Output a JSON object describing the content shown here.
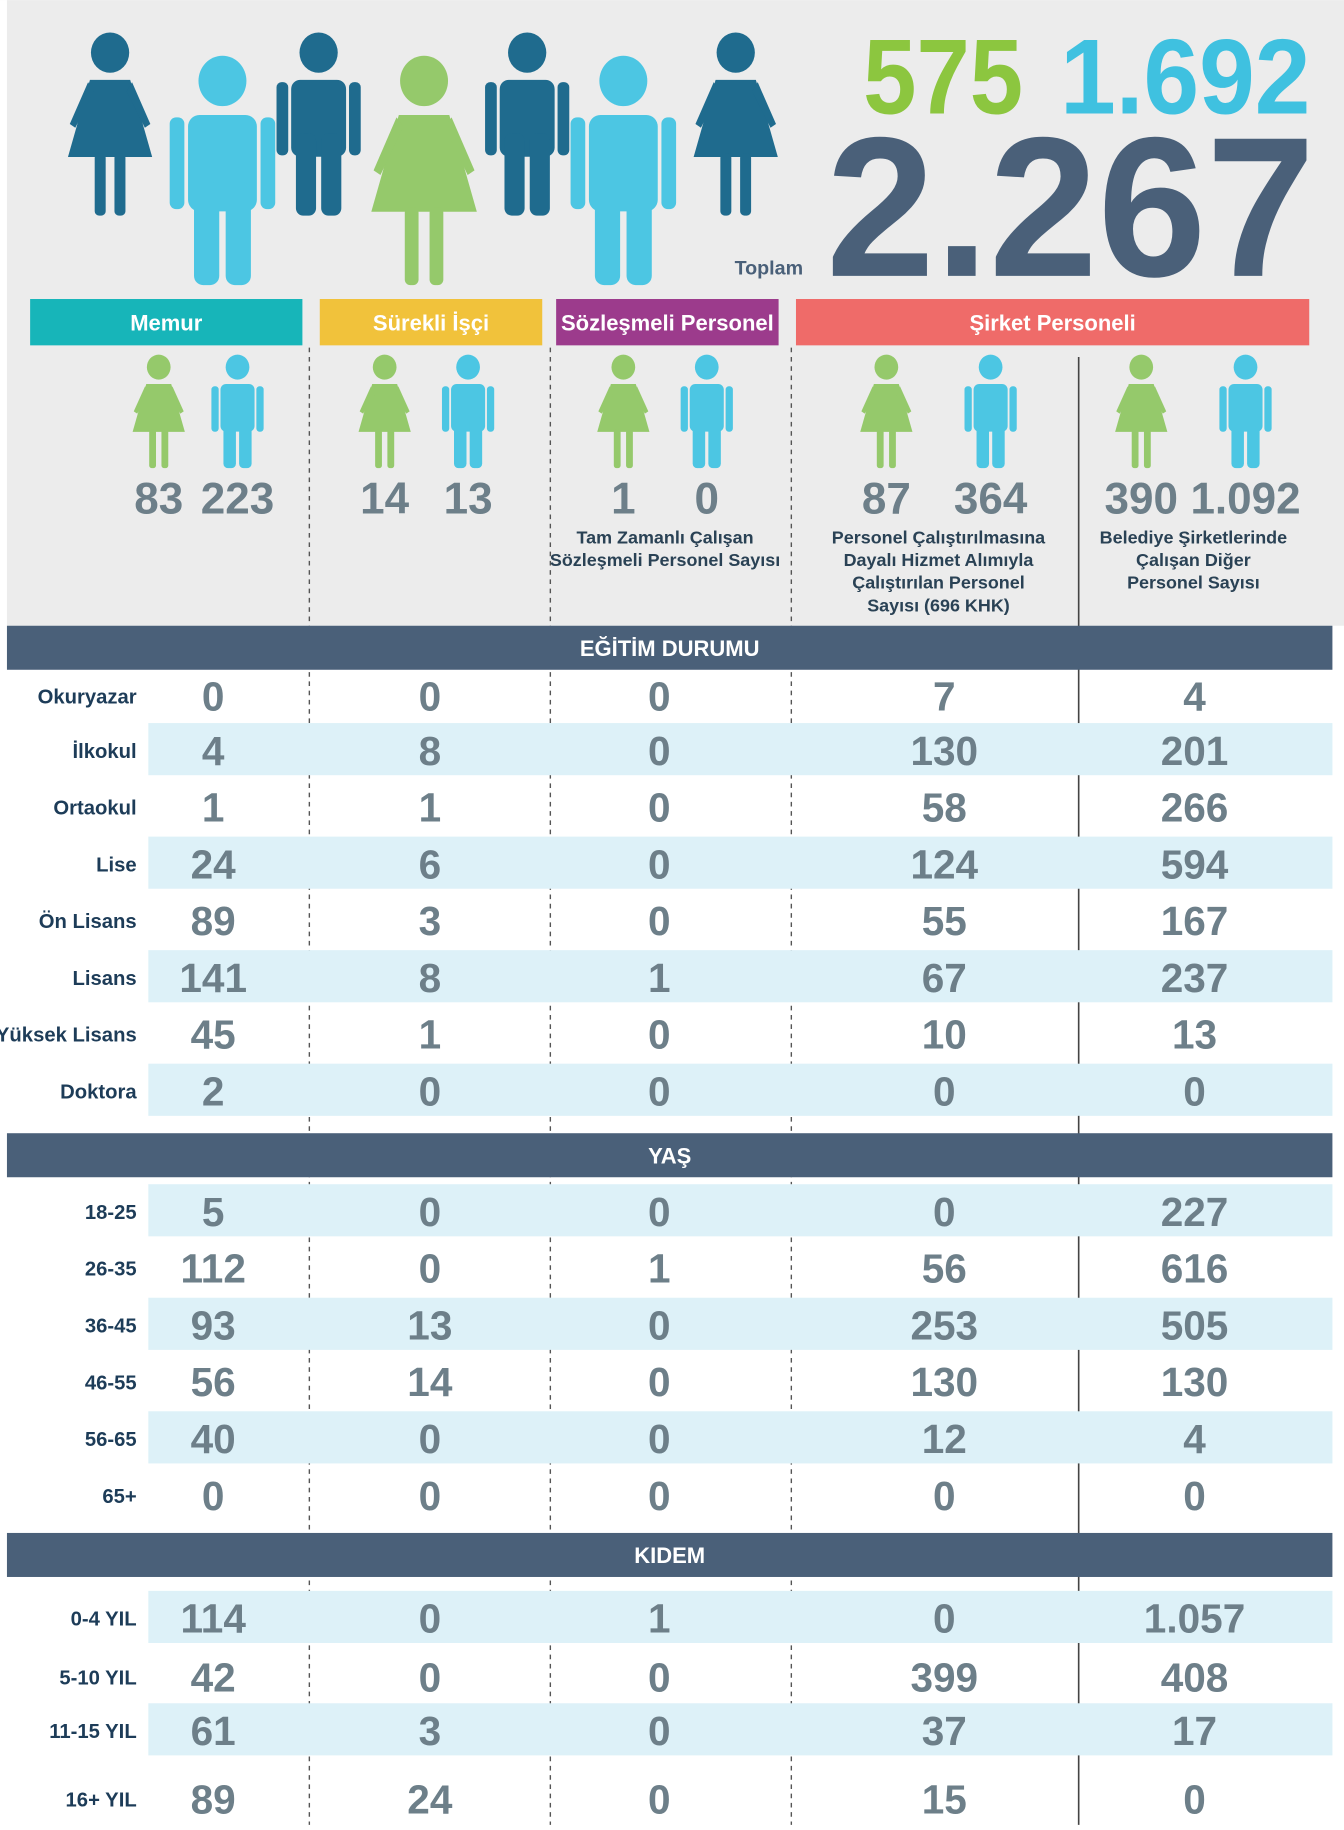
{
  "header": {
    "women": 575,
    "men": "1.692",
    "total_label": "Toplam",
    "total": "2.267"
  },
  "groups": [
    "Memur",
    "Sürekli İşçi",
    "Sözleşmeli Personel",
    "Şirket Personeli"
  ],
  "columns": [
    {
      "women": 83,
      "men": 223
    },
    {
      "women": 14,
      "men": 13
    },
    {
      "women": 1,
      "men": 0,
      "note": [
        "Tam Zamanlı Çalışan",
        "Sözleşmeli Personel Sayısı"
      ]
    },
    {
      "women": 87,
      "men": 364,
      "note": [
        "Personel Çalıştırılmasına",
        "Dayalı Hizmet Alımıyla",
        "Çalıştırılan Personel",
        "Sayısı (696 KHK)"
      ]
    },
    {
      "women": 390,
      "men": "1.092",
      "note": [
        "Belediye Şirketlerinde",
        "Çalışan Diğer",
        "Personel Sayısı"
      ]
    }
  ],
  "sections": [
    {
      "title": "EĞİTİM DURUMU",
      "rows": [
        {
          "label": "Okuryazar",
          "values": [
            0,
            0,
            0,
            7,
            4
          ]
        },
        {
          "label": "İlkokul",
          "values": [
            4,
            8,
            0,
            130,
            201
          ]
        },
        {
          "label": "Ortaokul",
          "values": [
            1,
            1,
            0,
            58,
            266
          ]
        },
        {
          "label": "Lise",
          "values": [
            24,
            6,
            0,
            124,
            594
          ]
        },
        {
          "label": "Ön Lisans",
          "values": [
            89,
            3,
            0,
            55,
            167
          ]
        },
        {
          "label": "Lisans",
          "values": [
            141,
            8,
            1,
            67,
            237
          ]
        },
        {
          "label": "Yüksek Lisans",
          "values": [
            45,
            1,
            0,
            10,
            13
          ]
        },
        {
          "label": "Doktora",
          "values": [
            2,
            0,
            0,
            0,
            0
          ]
        }
      ]
    },
    {
      "title": "YAŞ",
      "rows": [
        {
          "label": "18-25",
          "values": [
            5,
            0,
            0,
            0,
            227
          ]
        },
        {
          "label": "26-35",
          "values": [
            112,
            0,
            1,
            56,
            616
          ]
        },
        {
          "label": "36-45",
          "values": [
            93,
            13,
            0,
            253,
            505
          ]
        },
        {
          "label": "46-55",
          "values": [
            56,
            14,
            0,
            130,
            130
          ]
        },
        {
          "label": "56-65",
          "values": [
            40,
            0,
            0,
            12,
            4
          ]
        },
        {
          "label": "65+",
          "values": [
            0,
            0,
            0,
            0,
            0
          ]
        }
      ]
    },
    {
      "title": "KIDEM",
      "rows": [
        {
          "label": "0-4 YIL",
          "values": [
            114,
            0,
            1,
            0,
            "1.057"
          ]
        },
        {
          "label": "5-10 YIL",
          "values": [
            42,
            0,
            0,
            399,
            408
          ]
        },
        {
          "label": "11-15 YIL",
          "values": [
            61,
            3,
            0,
            37,
            17
          ]
        },
        {
          "label": "16+ YIL",
          "values": [
            89,
            24,
            0,
            15,
            0
          ]
        }
      ]
    }
  ]
}
